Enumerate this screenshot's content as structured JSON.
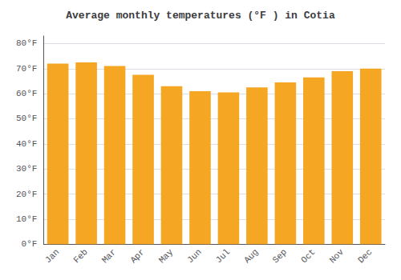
{
  "chart_data": {
    "type": "bar",
    "title": "Average monthly temperatures (°F ) in Cotia",
    "categories": [
      "Jan",
      "Feb",
      "Mar",
      "Apr",
      "May",
      "Jun",
      "Jul",
      "Aug",
      "Sep",
      "Oct",
      "Nov",
      "Dec"
    ],
    "values": [
      72,
      72.5,
      71,
      67.5,
      63,
      61,
      60.5,
      62.5,
      64.5,
      66.5,
      69,
      70
    ],
    "color": "#F5A623",
    "ylim": [
      0,
      83
    ],
    "yticks": [
      {
        "value": 0,
        "label": "0°F"
      },
      {
        "value": 10,
        "label": "10°F"
      },
      {
        "value": 20,
        "label": "20°F"
      },
      {
        "value": 30,
        "label": "30°F"
      },
      {
        "value": 40,
        "label": "40°F"
      },
      {
        "value": 50,
        "label": "50°F"
      },
      {
        "value": 60,
        "label": "60°F"
      },
      {
        "value": 70,
        "label": "70°F"
      },
      {
        "value": 80,
        "label": "80°F"
      }
    ],
    "grid": true
  }
}
